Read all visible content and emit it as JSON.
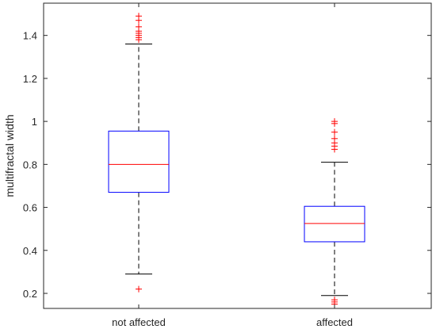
{
  "chart_data": {
    "type": "box",
    "ylabel": "multifractal width",
    "xlabel": "",
    "title": "",
    "ylim": [
      0.13,
      1.55
    ],
    "yticks": [
      0.2,
      0.4,
      0.6,
      0.8,
      1,
      1.2,
      1.4
    ],
    "ytick_labels": [
      "0.2",
      "0.4",
      "0.6",
      "0.8",
      "1",
      "1.2",
      "1.4"
    ],
    "grid": false,
    "categories": [
      "not affected",
      "affected"
    ],
    "boxes": [
      {
        "category": "not affected",
        "whisker_low": 0.29,
        "q1": 0.67,
        "median": 0.8,
        "q3": 0.955,
        "whisker_high": 1.36,
        "outliers": [
          0.22,
          1.38,
          1.39,
          1.4,
          1.41,
          1.42,
          1.44,
          1.47,
          1.49
        ]
      },
      {
        "category": "affected",
        "whisker_low": 0.19,
        "q1": 0.44,
        "median": 0.525,
        "q3": 0.605,
        "whisker_high": 0.81,
        "outliers": [
          0.15,
          0.16,
          0.17,
          0.87,
          0.885,
          0.9,
          0.92,
          0.95,
          0.99,
          1.0
        ]
      }
    ],
    "colors": {
      "box": "#0000ff",
      "median": "#ff0000",
      "whisker": "#000000",
      "outlier": "#ff0000",
      "axis": "#262626"
    }
  }
}
